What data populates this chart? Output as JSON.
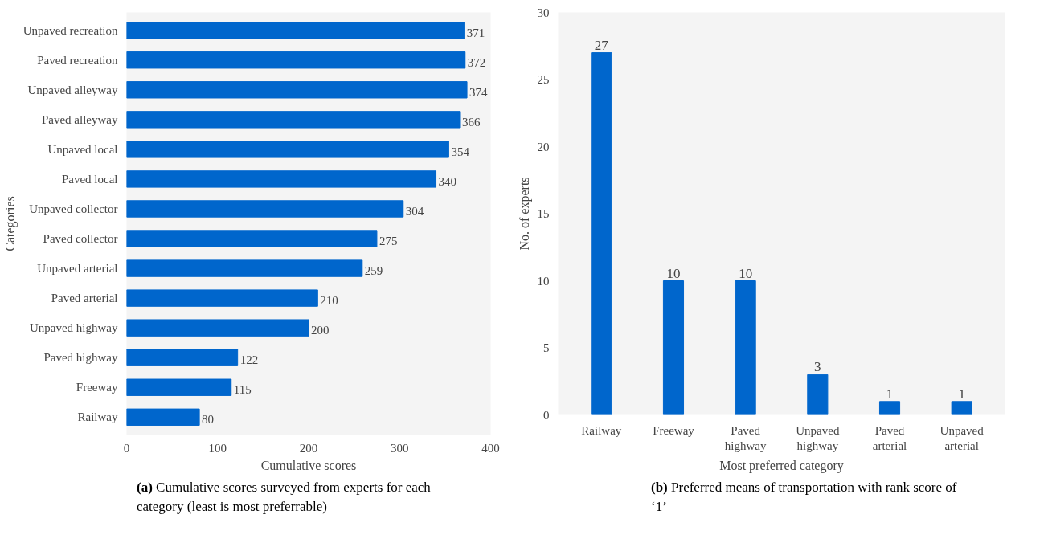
{
  "chart_data": [
    {
      "type": "bar",
      "orientation": "horizontal",
      "xlabel": "Cumulative scores",
      "ylabel": "Categories",
      "categories": [
        "Unpaved recreation",
        "Paved recreation",
        "Unpaved alleyway",
        "Paved alleyway",
        "Unpaved local",
        "Paved local",
        "Unpaved collector",
        "Paved collector",
        "Unpaved arterial",
        "Paved arterial",
        "Unpaved highway",
        "Paved highway",
        "Freeway",
        "Railway"
      ],
      "values": [
        371,
        372,
        374,
        366,
        354,
        340,
        304,
        275,
        259,
        210,
        200,
        122,
        115,
        80
      ],
      "color": "#0066cc",
      "xlim": [
        0,
        400
      ],
      "xticks": [
        0,
        100,
        200,
        300,
        400
      ],
      "data_labels": true,
      "grid": false,
      "annotations": [
        "(a) Cumulative scores surveyed from experts for each category (least is most preferrable)"
      ]
    },
    {
      "type": "bar",
      "xlabel": "Most preferred category",
      "ylabel": "No. of experts",
      "categories": [
        "Railway",
        "Freeway",
        "Paved highway",
        "Unpaved highway",
        "Paved arterial",
        "Unpaved arterial"
      ],
      "values": [
        27,
        10,
        10,
        3,
        1,
        1
      ],
      "color": "#0066cc",
      "ylim": [
        0,
        30
      ],
      "yticks": [
        0,
        5,
        10,
        15,
        20,
        25,
        30
      ],
      "data_labels": true,
      "grid": false,
      "annotations": [
        "(b) Preferred means of transportation with rank score of ‘1’"
      ]
    }
  ]
}
